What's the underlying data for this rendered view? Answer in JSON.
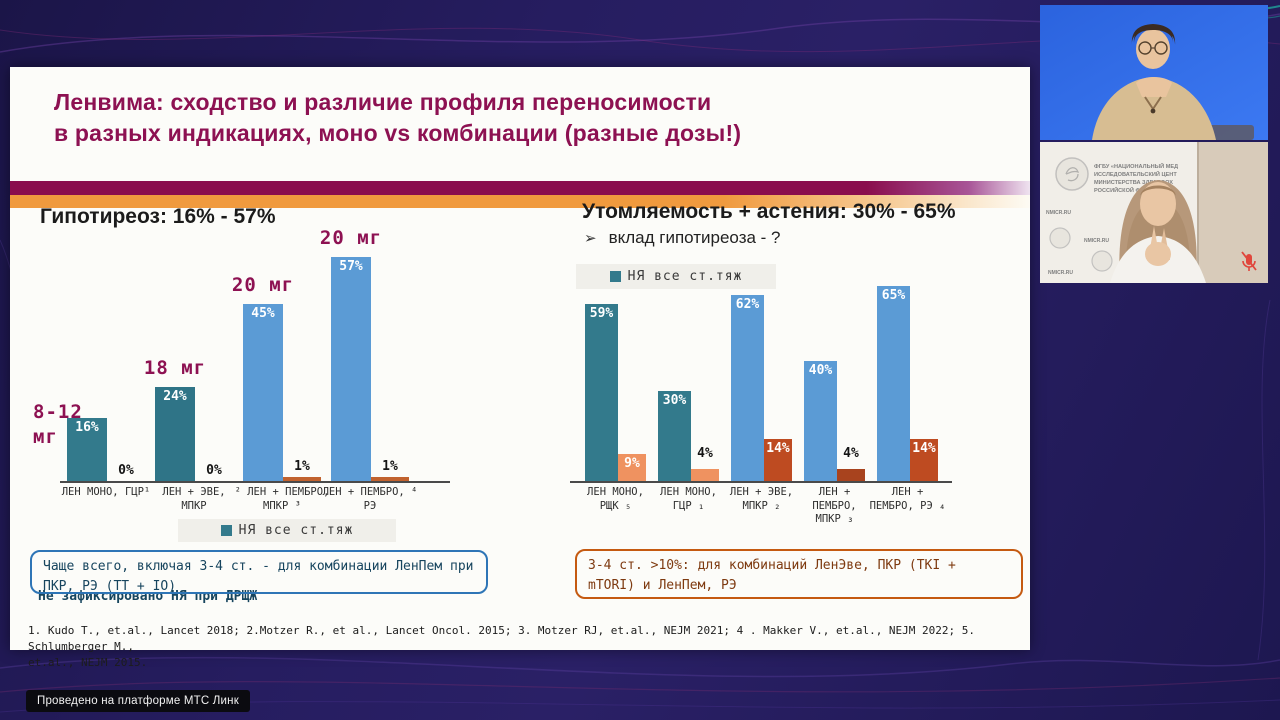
{
  "page": {
    "platform_badge": "Проведено на платформе МТС Линк"
  },
  "slide": {
    "title_line1": "Ленвима: сходство и различие профиля переносимости",
    "title_line2": "в разных индикациях, моно vs комбинации (разные дозы!)",
    "subtitle_bullet": "➢",
    "left_note_box": "Чаще всего, включая 3-4 ст. - для комбинации ЛенПем при ПКР, РЭ (TT + IO)",
    "left_note_under": "Не зафиксировано НЯ при ДРЩЖ",
    "right_note_box": "3-4 ст. >10%: для комбинаций ЛенЭве, ПКР (TKI + mTORI) и ЛенПем, РЭ",
    "references_line1": "1. Kudo T., et.al., Lancet 2018; 2.Motzer R., et al., Lancet Oncol. 2015; 3. Motzer RJ, et.al., NEJM 2021; 4 . Makker V., et.al., NEJM 2022; 5. Schlumberger M.,",
    "references_line2": "et.al., NEJM  2015."
  },
  "chart_data": [
    {
      "type": "bar",
      "title": "Гипотиреоз: 16% - 57%",
      "legend": {
        "label": "НЯ все ст.тяж",
        "color": "#337A8C",
        "position": "bottom"
      },
      "ylim": [
        0,
        60
      ],
      "grid": false,
      "categories": [
        [
          "ЛЕН МОНО, ГЦР¹"
        ],
        [
          "ЛЕН + ЭВЕ,",
          "МПКР"
        ],
        [
          "² ЛЕН + ПЕМБРО,",
          "МПКР ³"
        ],
        [
          "ЛЕН + ПЕМБРО, ⁴",
          "РЭ"
        ]
      ],
      "dose_labels": [
        [
          "8-12",
          "мг"
        ],
        [
          "18 мг"
        ],
        [
          "20 мг"
        ],
        [
          "20 мг"
        ]
      ],
      "series": [
        {
          "name": "НЯ все ст.тяж",
          "values": [
            16,
            24,
            45,
            57
          ],
          "colors": [
            "#337A8C",
            "#2F7487",
            "#5B9BD5",
            "#5B9BD5"
          ]
        },
        {
          "name": "",
          "values": [
            0,
            0,
            1,
            1
          ],
          "colors": [
            "#C1622E",
            "#C1622E",
            "#C1622E",
            "#C1622E"
          ]
        }
      ]
    },
    {
      "type": "bar",
      "title": "Утомляемость + астения: 30% - 65%",
      "subtitle": "вклад гипотиреоза - ?",
      "legend": {
        "label": "НЯ все ст.тяж",
        "color": "#337A8C",
        "position": "top"
      },
      "ylim": [
        0,
        70
      ],
      "grid": false,
      "categories": [
        [
          "ЛЕН МОНО,",
          "РЩК ₅"
        ],
        [
          "ЛЕН МОНО,",
          "ГЦР ₁"
        ],
        [
          "ЛЕН + ЭВЕ,",
          "МПКР ₂"
        ],
        [
          "ЛЕН +",
          "ПЕМБРО,",
          "МПКР ₃"
        ],
        [
          "ЛЕН +",
          "ПЕМБРО, РЭ ₄"
        ]
      ],
      "series": [
        {
          "name": "НЯ все ст.тяж",
          "values": [
            59,
            30,
            62,
            40,
            65
          ],
          "colors": [
            "#337A8C",
            "#337A8C",
            "#5B9BD5",
            "#5B9BD5",
            "#5B9BD5"
          ]
        },
        {
          "name": "",
          "values": [
            9,
            4,
            14,
            4,
            14
          ],
          "colors": [
            "#EF9260",
            "#EF9260",
            "#BE4B21",
            "#A8431E",
            "#BE4B21"
          ]
        }
      ]
    }
  ],
  "webcams": {
    "tile2_backdrop": {
      "org_lines": [
        "ФГБУ «НАЦИОНАЛЬНЫЙ МЕД",
        "ИССЛЕДОВАТЕЛЬСКИЙ ЦЕНТ",
        "МИНИСТЕРСТВА ЗДРАВООХ",
        "РОССИЙСКОЙ ФЕДЕРАЦИ"
      ],
      "site_label": "NMICR.RU"
    }
  }
}
